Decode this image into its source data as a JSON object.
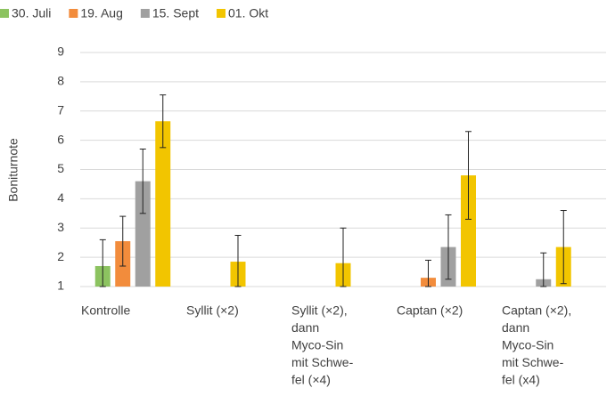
{
  "chart_data": {
    "type": "bar",
    "y_label": "Boniturnote",
    "categories": [
      [
        "Kontrolle"
      ],
      [
        "Syllit (×2)"
      ],
      [
        "Syllit (×2),",
        "dann",
        "Myco-Sin",
        "mit Schwe-",
        "fel (×4)"
      ],
      [
        "Captan (×2)"
      ],
      [
        "Captan (×2),",
        "dann",
        "Myco-Sin",
        "mit Schwe-",
        "fel (x4)"
      ]
    ],
    "series": [
      {
        "name": "30. Juli",
        "color": "#8cc360",
        "values": [
          1.7,
          null,
          null,
          null,
          null
        ],
        "errors": [
          0.9,
          null,
          null,
          null,
          null
        ]
      },
      {
        "name": "19. Aug",
        "color": "#f28c3c",
        "values": [
          2.55,
          null,
          null,
          1.3,
          null
        ],
        "errors": [
          0.85,
          null,
          null,
          0.6,
          null
        ]
      },
      {
        "name": "15. Sept",
        "color": "#a0a0a0",
        "values": [
          4.6,
          null,
          null,
          2.35,
          1.25
        ],
        "errors": [
          1.1,
          null,
          null,
          1.1,
          0.9
        ]
      },
      {
        "name": "01. Okt",
        "color": "#f2c500",
        "values": [
          6.65,
          1.85,
          1.8,
          4.8,
          2.35
        ],
        "errors": [
          0.9,
          0.9,
          1.2,
          1.5,
          1.25
        ]
      }
    ],
    "ylim": [
      1,
      9
    ],
    "yticks": [
      1,
      2,
      3,
      4,
      5,
      6,
      7,
      8,
      9
    ],
    "grid": true,
    "legend": "top-left"
  }
}
